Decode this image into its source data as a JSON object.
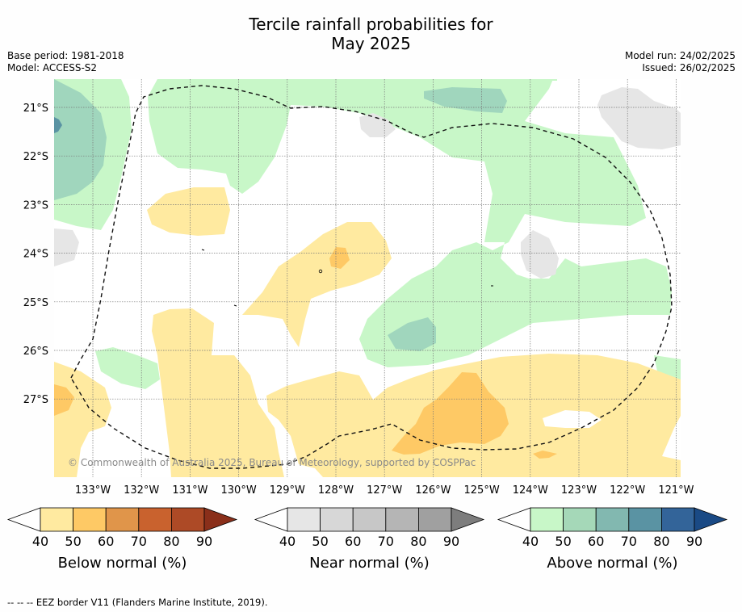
{
  "title_line1": "Tercile rainfall probabilities for",
  "title_line2": "May 2025",
  "base_period": "Base period: 1981-2018",
  "model": "Model: ACCESS-S2",
  "model_run": "Model run: 24/02/2025",
  "issued": "Issued: 26/02/2025",
  "copyright": "© Commonwealth of Australia 2025, Bureau of Meteorology, supported by COSPPac",
  "lat_labels": [
    "21°S",
    "22°S",
    "23°S",
    "24°S",
    "25°S",
    "26°S",
    "27°S"
  ],
  "lon_labels": [
    "133°W",
    "132°W",
    "131°W",
    "130°W",
    "129°W",
    "128°W",
    "127°W",
    "126°W",
    "125°W",
    "124°W",
    "123°W",
    "122°W",
    "121°W"
  ],
  "legends": [
    {
      "label": "Below normal (%)",
      "ticks": [
        "40",
        "50",
        "60",
        "70",
        "80",
        "90"
      ],
      "colors": [
        "#ffeaa0",
        "#fec965",
        "#e0954a",
        "#c9622e",
        "#ad4a26",
        "#8a2f1a"
      ]
    },
    {
      "label": "Near normal (%)",
      "ticks": [
        "40",
        "50",
        "60",
        "70",
        "80",
        "90"
      ],
      "colors": [
        "#e6e6e6",
        "#d7d7d7",
        "#c7c7c7",
        "#b5b5b5",
        "#a0a0a0",
        "#7d7d7d"
      ]
    },
    {
      "label": "Above normal (%)",
      "ticks": [
        "40",
        "50",
        "60",
        "70",
        "80",
        "90"
      ],
      "colors": [
        "#c8f7c8",
        "#a5d8b8",
        "#82b8b0",
        "#5a93a3",
        "#336499",
        "#1a4a85"
      ]
    }
  ],
  "footer": "--  --  -- EEZ border V11 (Flanders Marine Institute, 2019)."
}
